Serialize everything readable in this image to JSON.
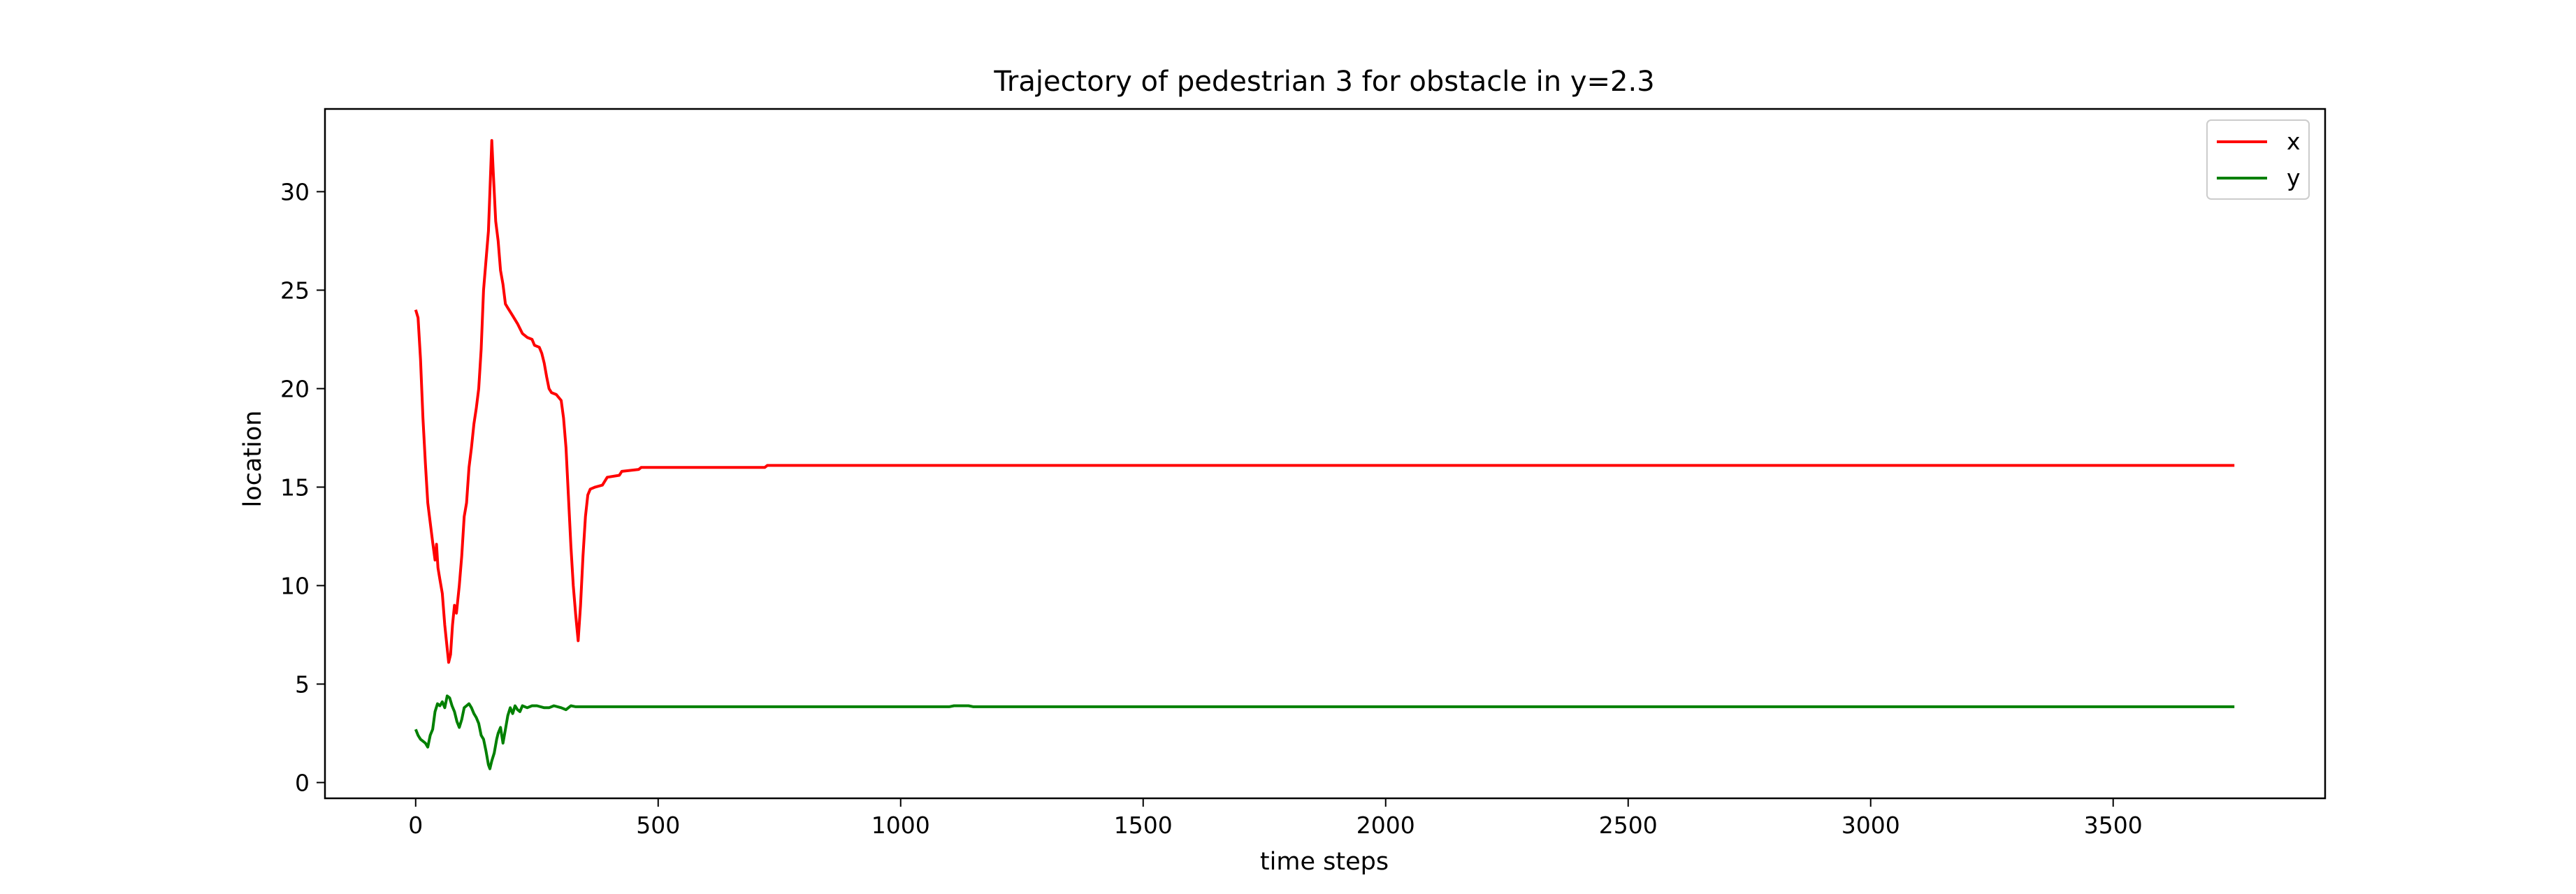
{
  "chart_data": {
    "type": "line",
    "title": "Trajectory of pedestrian 3 for obstacle in y=2.3",
    "xlabel": "time steps",
    "ylabel": "location",
    "xlim": [
      -187,
      3937
    ],
    "ylim": [
      -0.8,
      34.2
    ],
    "xticks": [
      0,
      500,
      1000,
      1500,
      2000,
      2500,
      3000,
      3500
    ],
    "yticks": [
      0,
      5,
      10,
      15,
      20,
      25,
      30
    ],
    "grid": false,
    "legend_position": "top-right",
    "series": [
      {
        "name": "x",
        "color": "#ff0000",
        "points": [
          [
            0,
            24
          ],
          [
            5,
            23.6
          ],
          [
            10,
            21.5
          ],
          [
            15,
            18.5
          ],
          [
            20,
            16.2
          ],
          [
            25,
            14.2
          ],
          [
            30,
            13.2
          ],
          [
            35,
            12.2
          ],
          [
            40,
            11.3
          ],
          [
            43,
            12.1
          ],
          [
            46,
            10.9
          ],
          [
            50,
            10.3
          ],
          [
            55,
            9.6
          ],
          [
            60,
            8.0
          ],
          [
            65,
            6.8
          ],
          [
            68,
            6.1
          ],
          [
            72,
            6.5
          ],
          [
            76,
            8.0
          ],
          [
            80,
            9.0
          ],
          [
            84,
            8.6
          ],
          [
            90,
            10.0
          ],
          [
            95,
            11.5
          ],
          [
            100,
            13.5
          ],
          [
            105,
            14.2
          ],
          [
            110,
            16.0
          ],
          [
            115,
            17.0
          ],
          [
            120,
            18.2
          ],
          [
            125,
            19.0
          ],
          [
            130,
            20.0
          ],
          [
            135,
            22.0
          ],
          [
            140,
            25.0
          ],
          [
            145,
            26.5
          ],
          [
            150,
            28.0
          ],
          [
            153,
            30.0
          ],
          [
            157,
            32.6
          ],
          [
            160,
            31.0
          ],
          [
            165,
            28.5
          ],
          [
            170,
            27.5
          ],
          [
            175,
            26.0
          ],
          [
            180,
            25.3
          ],
          [
            185,
            24.3
          ],
          [
            190,
            24.1
          ],
          [
            200,
            23.7
          ],
          [
            210,
            23.3
          ],
          [
            220,
            22.8
          ],
          [
            230,
            22.6
          ],
          [
            240,
            22.5
          ],
          [
            245,
            22.2
          ],
          [
            255,
            22.1
          ],
          [
            260,
            21.8
          ],
          [
            265,
            21.3
          ],
          [
            270,
            20.6
          ],
          [
            275,
            20.0
          ],
          [
            280,
            19.8
          ],
          [
            290,
            19.7
          ],
          [
            300,
            19.4
          ],
          [
            305,
            18.5
          ],
          [
            310,
            17.0
          ],
          [
            315,
            14.5
          ],
          [
            320,
            12.0
          ],
          [
            325,
            10.0
          ],
          [
            330,
            8.5
          ],
          [
            335,
            7.2
          ],
          [
            340,
            9.0
          ],
          [
            345,
            11.5
          ],
          [
            350,
            13.5
          ],
          [
            355,
            14.6
          ],
          [
            360,
            14.9
          ],
          [
            370,
            15.0
          ],
          [
            385,
            15.1
          ],
          [
            395,
            15.5
          ],
          [
            420,
            15.6
          ],
          [
            425,
            15.8
          ],
          [
            460,
            15.9
          ],
          [
            465,
            16.0
          ],
          [
            720,
            16.0
          ],
          [
            725,
            16.1
          ],
          [
            3750,
            16.1
          ]
        ]
      },
      {
        "name": "y",
        "color": "#008000",
        "points": [
          [
            0,
            2.7
          ],
          [
            5,
            2.4
          ],
          [
            10,
            2.2
          ],
          [
            15,
            2.1
          ],
          [
            20,
            2.0
          ],
          [
            25,
            1.8
          ],
          [
            30,
            2.4
          ],
          [
            35,
            2.7
          ],
          [
            40,
            3.6
          ],
          [
            45,
            4.0
          ],
          [
            50,
            3.9
          ],
          [
            55,
            4.1
          ],
          [
            60,
            3.8
          ],
          [
            65,
            4.4
          ],
          [
            70,
            4.3
          ],
          [
            75,
            3.9
          ],
          [
            80,
            3.6
          ],
          [
            85,
            3.1
          ],
          [
            90,
            2.8
          ],
          [
            95,
            3.2
          ],
          [
            100,
            3.8
          ],
          [
            105,
            3.9
          ],
          [
            110,
            4.0
          ],
          [
            115,
            3.8
          ],
          [
            120,
            3.5
          ],
          [
            125,
            3.3
          ],
          [
            130,
            3.0
          ],
          [
            135,
            2.4
          ],
          [
            140,
            2.2
          ],
          [
            145,
            1.6
          ],
          [
            150,
            0.9
          ],
          [
            153,
            0.7
          ],
          [
            157,
            1.1
          ],
          [
            162,
            1.5
          ],
          [
            167,
            2.2
          ],
          [
            170,
            2.5
          ],
          [
            175,
            2.8
          ],
          [
            180,
            2.0
          ],
          [
            185,
            2.7
          ],
          [
            190,
            3.4
          ],
          [
            195,
            3.8
          ],
          [
            200,
            3.5
          ],
          [
            205,
            3.9
          ],
          [
            210,
            3.7
          ],
          [
            215,
            3.6
          ],
          [
            220,
            3.9
          ],
          [
            230,
            3.8
          ],
          [
            240,
            3.9
          ],
          [
            250,
            3.9
          ],
          [
            265,
            3.8
          ],
          [
            275,
            3.8
          ],
          [
            285,
            3.9
          ],
          [
            300,
            3.8
          ],
          [
            310,
            3.7
          ],
          [
            320,
            3.9
          ],
          [
            330,
            3.85
          ],
          [
            1100,
            3.85
          ],
          [
            1110,
            3.9
          ],
          [
            1140,
            3.9
          ],
          [
            1150,
            3.85
          ],
          [
            3750,
            3.85
          ]
        ]
      }
    ]
  }
}
